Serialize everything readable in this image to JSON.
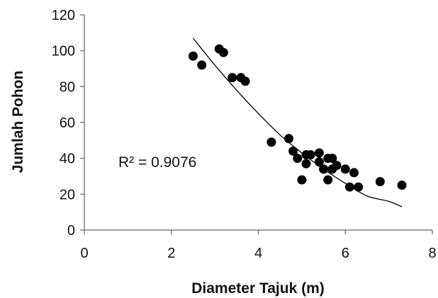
{
  "chart_data": {
    "type": "scatter",
    "xlabel": "Diameter Tajuk (m)",
    "ylabel": "Jumlah Pohon",
    "xlim": [
      0,
      8
    ],
    "ylim": [
      0,
      120
    ],
    "x_ticks": [
      "0",
      "2",
      "4",
      "6",
      "8"
    ],
    "y_ticks": [
      "0",
      "20",
      "40",
      "60",
      "80",
      "100",
      "120"
    ],
    "grid": false,
    "legend": "none",
    "annotation": "R² = 0.9076",
    "trendline": {
      "type": "curve",
      "x": [
        2.5,
        3.0,
        3.5,
        4.0,
        4.5,
        5.0,
        5.5,
        6.0,
        6.5,
        7.0,
        7.3
      ],
      "y": [
        107,
        92,
        78,
        65,
        53,
        43,
        34,
        26,
        19,
        16,
        13
      ]
    },
    "points": [
      {
        "x": 2.5,
        "y": 97
      },
      {
        "x": 2.7,
        "y": 92
      },
      {
        "x": 3.1,
        "y": 101
      },
      {
        "x": 3.2,
        "y": 99
      },
      {
        "x": 3.4,
        "y": 85
      },
      {
        "x": 3.6,
        "y": 85
      },
      {
        "x": 3.7,
        "y": 83
      },
      {
        "x": 4.3,
        "y": 49
      },
      {
        "x": 4.7,
        "y": 51
      },
      {
        "x": 4.8,
        "y": 44
      },
      {
        "x": 4.9,
        "y": 40
      },
      {
        "x": 5.0,
        "y": 28
      },
      {
        "x": 5.1,
        "y": 42
      },
      {
        "x": 5.1,
        "y": 37
      },
      {
        "x": 5.2,
        "y": 42
      },
      {
        "x": 5.4,
        "y": 43
      },
      {
        "x": 5.4,
        "y": 38
      },
      {
        "x": 5.5,
        "y": 34
      },
      {
        "x": 5.6,
        "y": 40
      },
      {
        "x": 5.6,
        "y": 28
      },
      {
        "x": 5.7,
        "y": 40
      },
      {
        "x": 5.7,
        "y": 34
      },
      {
        "x": 5.8,
        "y": 36
      },
      {
        "x": 6.0,
        "y": 34
      },
      {
        "x": 6.1,
        "y": 24
      },
      {
        "x": 6.2,
        "y": 32
      },
      {
        "x": 6.3,
        "y": 24
      },
      {
        "x": 6.8,
        "y": 27
      },
      {
        "x": 7.3,
        "y": 25
      }
    ]
  }
}
